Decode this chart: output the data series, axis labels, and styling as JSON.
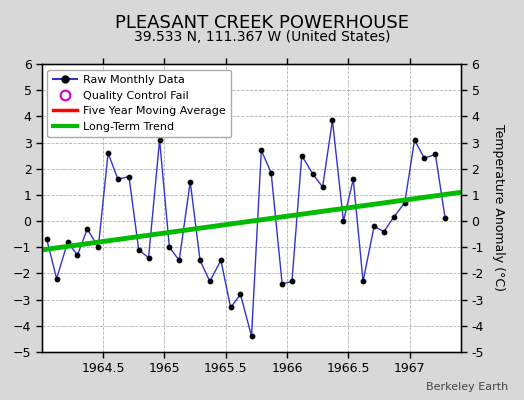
{
  "title": "PLEASANT CREEK POWERHOUSE",
  "subtitle": "39.533 N, 111.367 W (United States)",
  "ylabel": "Temperature Anomaly (°C)",
  "watermark": "Berkeley Earth",
  "xlim": [
    1964.0,
    1967.42
  ],
  "ylim": [
    -5,
    6
  ],
  "yticks": [
    -5,
    -4,
    -3,
    -2,
    -1,
    0,
    1,
    2,
    3,
    4,
    5,
    6
  ],
  "xticks": [
    1964.5,
    1965.0,
    1965.5,
    1966.0,
    1966.5,
    1967.0
  ],
  "raw_x": [
    1964.04,
    1964.12,
    1964.21,
    1964.29,
    1964.37,
    1964.46,
    1964.54,
    1964.62,
    1964.71,
    1964.79,
    1964.87,
    1964.96,
    1965.04,
    1965.12,
    1965.21,
    1965.29,
    1965.37,
    1965.46,
    1965.54,
    1965.62,
    1965.71,
    1965.79,
    1965.87,
    1965.96,
    1966.04,
    1966.12,
    1966.21,
    1966.29,
    1966.37,
    1966.46,
    1966.54,
    1966.62,
    1966.71,
    1966.79,
    1966.87,
    1966.96,
    1967.04,
    1967.12,
    1967.21,
    1967.29
  ],
  "raw_y": [
    -0.7,
    -2.2,
    -0.8,
    -1.3,
    -0.3,
    -1.0,
    2.6,
    1.6,
    1.7,
    -1.1,
    -1.4,
    3.1,
    -1.0,
    -1.5,
    1.5,
    -1.5,
    -2.3,
    -1.5,
    -3.3,
    -2.8,
    -4.4,
    2.7,
    1.85,
    -2.4,
    -2.3,
    2.5,
    1.8,
    1.3,
    3.85,
    0.0,
    1.6,
    -2.3,
    -0.2,
    -0.4,
    0.15,
    0.7,
    3.1,
    2.4,
    2.55,
    0.1
  ],
  "trend_x": [
    1964.0,
    1967.42
  ],
  "trend_y": [
    -1.1,
    1.1
  ],
  "line_color": "#3333cc",
  "marker_color": "#000000",
  "trend_color": "#00bb00",
  "ma_color": "#ff0000",
  "bg_color": "#d8d8d8",
  "plot_bg_color": "#ffffff",
  "legend_labels": [
    "Raw Monthly Data",
    "Quality Control Fail",
    "Five Year Moving Average",
    "Long-Term Trend"
  ],
  "legend_marker_color": "#cc00cc",
  "title_fontsize": 13,
  "subtitle_fontsize": 10,
  "tick_fontsize": 9,
  "ylabel_fontsize": 9
}
